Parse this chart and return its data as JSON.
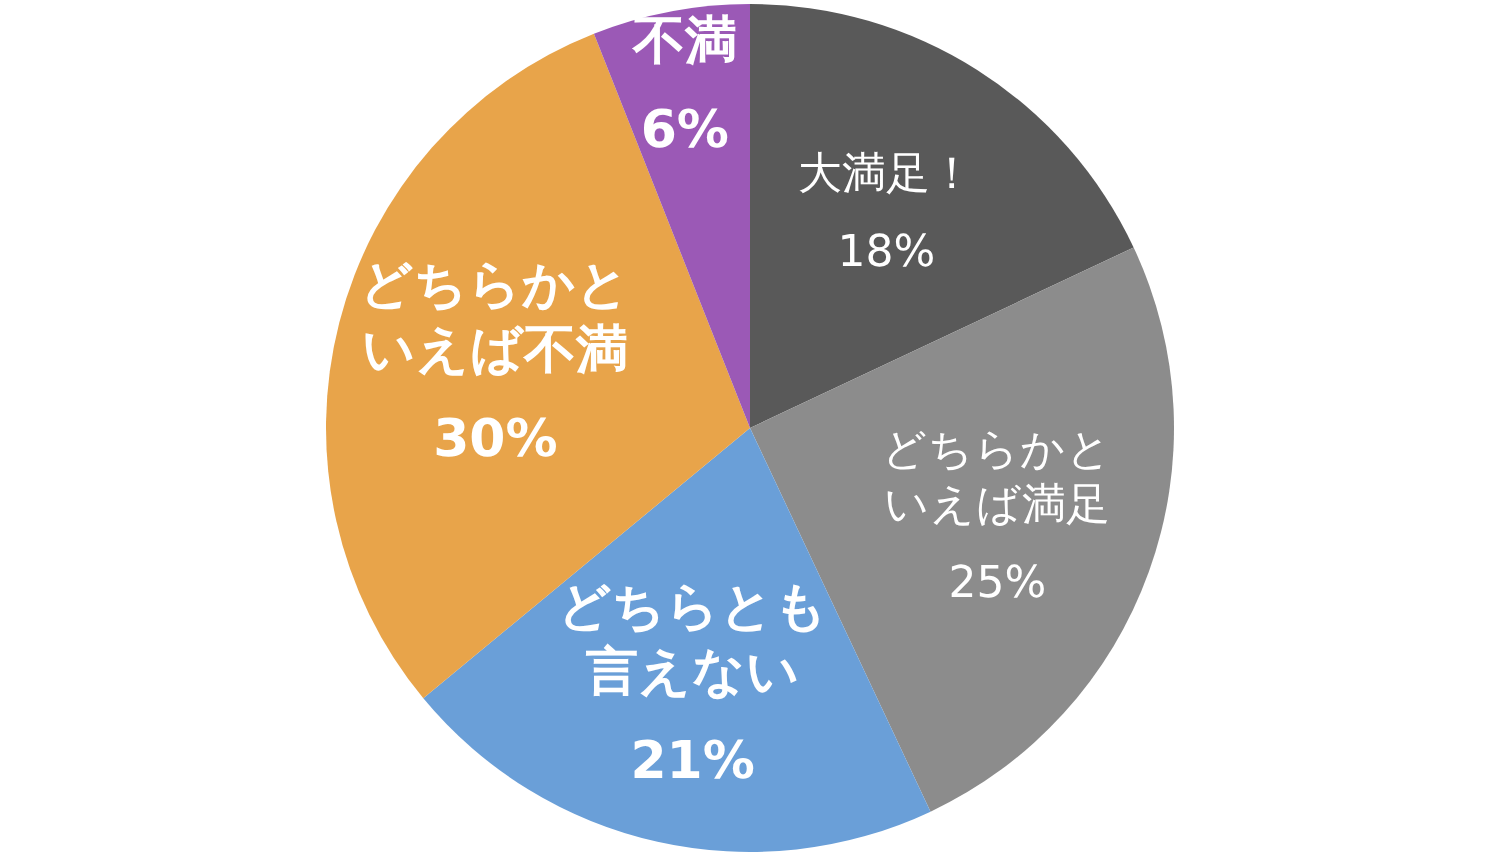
{
  "chart_data": {
    "type": "pie",
    "categories": [
      "大満足！",
      "どちらかといえば満足",
      "どちらとも言えない",
      "どちらかといえば不満",
      "不満"
    ],
    "values": [
      18,
      25,
      21,
      30,
      6
    ],
    "colors": [
      "#595959",
      "#8c8c8c",
      "#6a9fd8",
      "#e8a44a",
      "#9b59b6"
    ],
    "value_labels": [
      "18%",
      "25%",
      "21%",
      "30%",
      "6%"
    ]
  }
}
